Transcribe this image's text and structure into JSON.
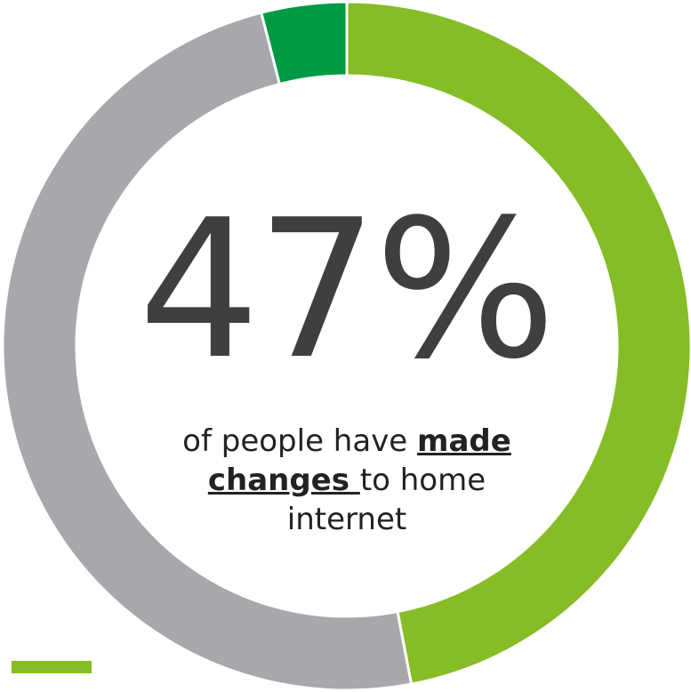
{
  "chart_data": {
    "type": "pie",
    "variant": "donut",
    "slices": [
      {
        "label": "made changes",
        "value": 47,
        "color": "#86bc25"
      },
      {
        "label": "",
        "value": 49,
        "color": "#a6a8ab"
      },
      {
        "label": "",
        "value": 4,
        "color": "#009a44"
      }
    ],
    "center_value": "47%",
    "caption": {
      "pre": "of people have ",
      "emphasis": "made changes ",
      "post": "to home internet"
    }
  },
  "legend": {
    "swatch_color": "#86bc25"
  }
}
